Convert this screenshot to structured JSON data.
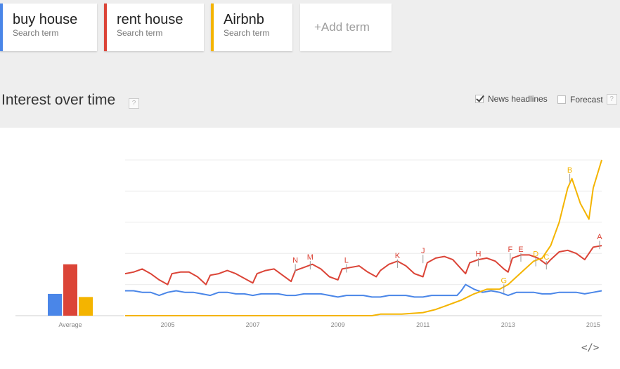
{
  "terms": [
    {
      "name": "buy house",
      "sub": "Search term",
      "color": "#4a86e8"
    },
    {
      "name": "rent house",
      "sub": "Search term",
      "color": "#db4437"
    },
    {
      "name": "Airbnb",
      "sub": "Search term",
      "color": "#f4b400"
    }
  ],
  "add_term_label": "+Add term",
  "section_title": "Interest over time",
  "help_glyph": "?",
  "options": {
    "news_headlines": "News headlines",
    "news_checked": true,
    "forecast": "Forecast",
    "forecast_checked": false
  },
  "embed_glyph": "</>",
  "chart_data": {
    "type": "line",
    "x_ticks": [
      "2005",
      "2007",
      "2009",
      "2011",
      "2013",
      "2015"
    ],
    "x_range": [
      2004,
      2015.2
    ],
    "y_range": [
      0,
      100
    ],
    "grid": true,
    "average": {
      "label": "Average",
      "values": [
        14,
        33,
        12
      ]
    },
    "series": [
      {
        "name": "buy house",
        "color": "#4a86e8",
        "points": [
          [
            2004.0,
            16
          ],
          [
            2004.2,
            16
          ],
          [
            2004.4,
            15
          ],
          [
            2004.6,
            15
          ],
          [
            2004.8,
            13
          ],
          [
            2005.0,
            15
          ],
          [
            2005.2,
            16
          ],
          [
            2005.4,
            15
          ],
          [
            2005.6,
            15
          ],
          [
            2005.8,
            14
          ],
          [
            2006.0,
            13
          ],
          [
            2006.2,
            15
          ],
          [
            2006.4,
            15
          ],
          [
            2006.6,
            14
          ],
          [
            2006.8,
            14
          ],
          [
            2007.0,
            13
          ],
          [
            2007.2,
            14
          ],
          [
            2007.4,
            14
          ],
          [
            2007.6,
            14
          ],
          [
            2007.8,
            13
          ],
          [
            2008.0,
            13
          ],
          [
            2008.2,
            14
          ],
          [
            2008.4,
            14
          ],
          [
            2008.6,
            14
          ],
          [
            2008.8,
            13
          ],
          [
            2009.0,
            12
          ],
          [
            2009.2,
            13
          ],
          [
            2009.4,
            13
          ],
          [
            2009.6,
            13
          ],
          [
            2009.8,
            12
          ],
          [
            2010.0,
            12
          ],
          [
            2010.2,
            13
          ],
          [
            2010.4,
            13
          ],
          [
            2010.6,
            13
          ],
          [
            2010.8,
            12
          ],
          [
            2011.0,
            12
          ],
          [
            2011.2,
            13
          ],
          [
            2011.4,
            13
          ],
          [
            2011.6,
            13
          ],
          [
            2011.8,
            13
          ],
          [
            2011.9,
            16
          ],
          [
            2012.0,
            20
          ],
          [
            2012.2,
            17
          ],
          [
            2012.4,
            15
          ],
          [
            2012.6,
            16
          ],
          [
            2012.8,
            15
          ],
          [
            2013.0,
            13
          ],
          [
            2013.2,
            15
          ],
          [
            2013.4,
            15
          ],
          [
            2013.6,
            15
          ],
          [
            2013.8,
            14
          ],
          [
            2014.0,
            14
          ],
          [
            2014.2,
            15
          ],
          [
            2014.4,
            15
          ],
          [
            2014.6,
            15
          ],
          [
            2014.8,
            14
          ],
          [
            2015.0,
            15
          ],
          [
            2015.2,
            16
          ]
        ]
      },
      {
        "name": "rent house",
        "color": "#db4437",
        "points": [
          [
            2004.0,
            27
          ],
          [
            2004.2,
            28
          ],
          [
            2004.4,
            30
          ],
          [
            2004.6,
            27
          ],
          [
            2004.8,
            23
          ],
          [
            2005.0,
            20
          ],
          [
            2005.1,
            27
          ],
          [
            2005.3,
            28
          ],
          [
            2005.5,
            28
          ],
          [
            2005.7,
            25
          ],
          [
            2005.9,
            20
          ],
          [
            2006.0,
            26
          ],
          [
            2006.2,
            27
          ],
          [
            2006.4,
            29
          ],
          [
            2006.6,
            27
          ],
          [
            2006.8,
            24
          ],
          [
            2007.0,
            21
          ],
          [
            2007.1,
            27
          ],
          [
            2007.3,
            29
          ],
          [
            2007.5,
            30
          ],
          [
            2007.7,
            26
          ],
          [
            2007.9,
            22
          ],
          [
            2008.0,
            29
          ],
          [
            2008.2,
            31
          ],
          [
            2008.4,
            33
          ],
          [
            2008.6,
            30
          ],
          [
            2008.8,
            25
          ],
          [
            2009.0,
            23
          ],
          [
            2009.1,
            30
          ],
          [
            2009.3,
            31
          ],
          [
            2009.5,
            32
          ],
          [
            2009.7,
            28
          ],
          [
            2009.9,
            25
          ],
          [
            2010.0,
            29
          ],
          [
            2010.2,
            33
          ],
          [
            2010.4,
            35
          ],
          [
            2010.6,
            32
          ],
          [
            2010.8,
            27
          ],
          [
            2011.0,
            25
          ],
          [
            2011.1,
            34
          ],
          [
            2011.3,
            37
          ],
          [
            2011.5,
            38
          ],
          [
            2011.7,
            36
          ],
          [
            2011.9,
            30
          ],
          [
            2012.0,
            27
          ],
          [
            2012.1,
            34
          ],
          [
            2012.3,
            36
          ],
          [
            2012.5,
            37
          ],
          [
            2012.7,
            35
          ],
          [
            2012.9,
            30
          ],
          [
            2013.0,
            28
          ],
          [
            2013.1,
            37
          ],
          [
            2013.3,
            39
          ],
          [
            2013.5,
            39
          ],
          [
            2013.7,
            37
          ],
          [
            2013.9,
            33
          ],
          [
            2014.0,
            36
          ],
          [
            2014.2,
            41
          ],
          [
            2014.4,
            42
          ],
          [
            2014.6,
            40
          ],
          [
            2014.8,
            36
          ],
          [
            2015.0,
            44
          ],
          [
            2015.2,
            45
          ]
        ]
      },
      {
        "name": "Airbnb",
        "color": "#f4b400",
        "points": [
          [
            2004.0,
            0
          ],
          [
            2005.0,
            0
          ],
          [
            2006.0,
            0
          ],
          [
            2007.0,
            0
          ],
          [
            2008.0,
            0
          ],
          [
            2009.0,
            0
          ],
          [
            2009.8,
            0
          ],
          [
            2010.0,
            1
          ],
          [
            2010.5,
            1
          ],
          [
            2011.0,
            2
          ],
          [
            2011.3,
            4
          ],
          [
            2011.6,
            7
          ],
          [
            2011.9,
            10
          ],
          [
            2012.2,
            14
          ],
          [
            2012.5,
            17
          ],
          [
            2012.8,
            17
          ],
          [
            2013.0,
            20
          ],
          [
            2013.2,
            25
          ],
          [
            2013.4,
            30
          ],
          [
            2013.6,
            35
          ],
          [
            2013.8,
            37
          ],
          [
            2014.0,
            45
          ],
          [
            2014.2,
            60
          ],
          [
            2014.4,
            82
          ],
          [
            2014.5,
            88
          ],
          [
            2014.7,
            72
          ],
          [
            2014.9,
            62
          ],
          [
            2015.0,
            82
          ],
          [
            2015.2,
            100
          ]
        ]
      }
    ],
    "annotations": [
      "N",
      "M",
      "L",
      "K",
      "J",
      "H",
      "F",
      "E",
      "D",
      "C",
      "B",
      "A",
      "G"
    ]
  }
}
